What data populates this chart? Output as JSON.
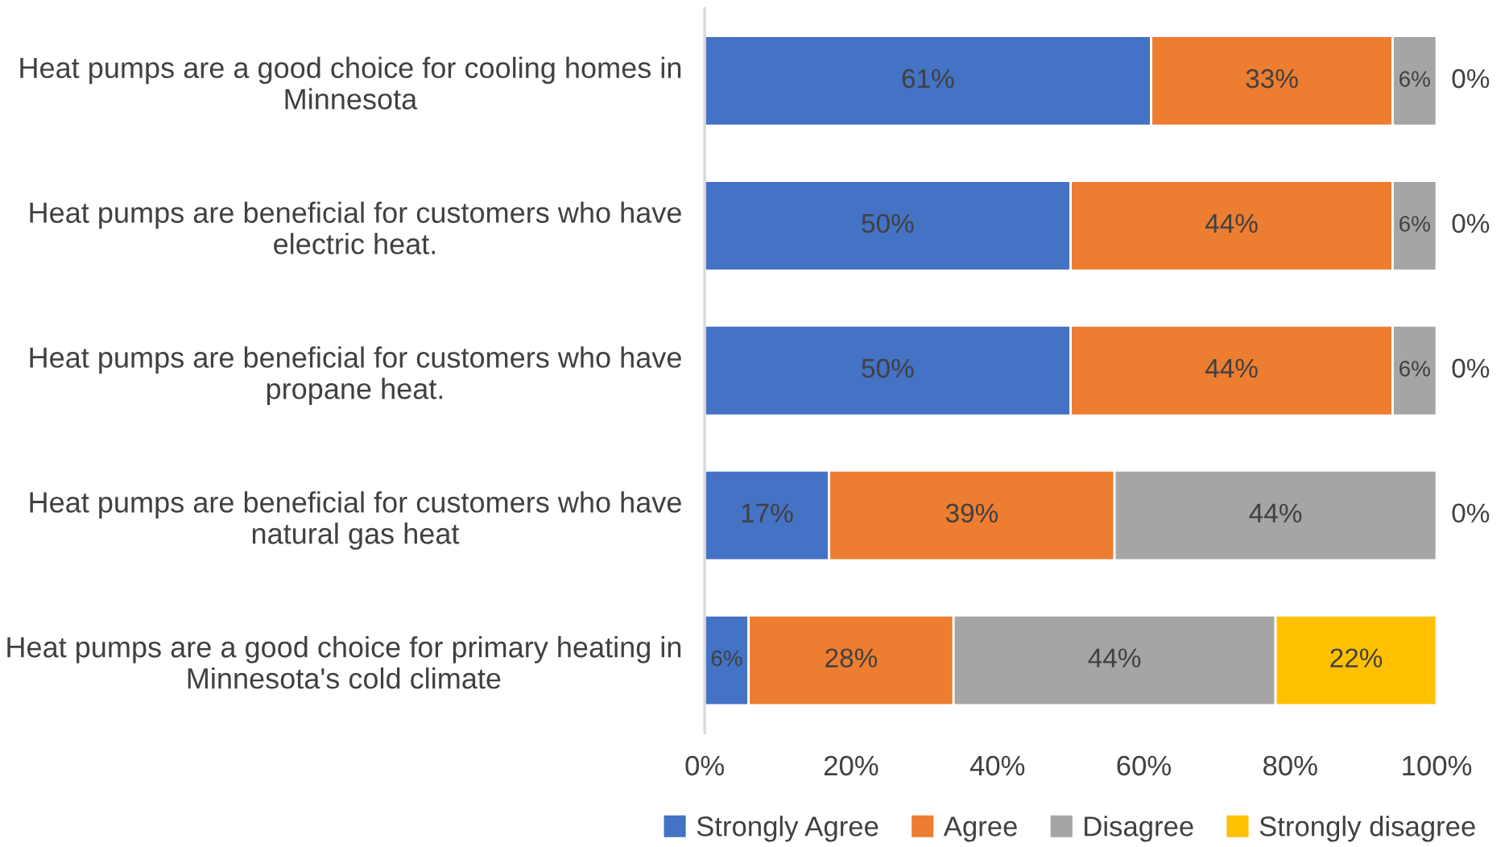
{
  "chart_data": {
    "type": "bar",
    "orientation": "horizontal",
    "stacked": true,
    "categories": [
      "Heat pumps are a good choice for cooling homes in Minnesota",
      "Heat pumps are beneficial for customers who have electric heat.",
      "Heat pumps are beneficial for customers who have propane heat.",
      "Heat pumps are beneficial for customers who have natural gas heat",
      "Heat pumps are a good choice for primary heating in Minnesota's cold climate"
    ],
    "series": [
      {
        "name": "Strongly Agree",
        "color": "#4472c4",
        "values": [
          61,
          50,
          50,
          17,
          6
        ],
        "value_labels": [
          "61%",
          "50%",
          "50%",
          "17%",
          "6%"
        ]
      },
      {
        "name": "Agree",
        "color": "#ed7d31",
        "values": [
          33,
          44,
          44,
          39,
          28
        ],
        "value_labels": [
          "33%",
          "44%",
          "44%",
          "39%",
          "28%"
        ]
      },
      {
        "name": "Disagree",
        "color": "#a5a5a5",
        "values": [
          6,
          6,
          6,
          44,
          44
        ],
        "value_labels": [
          "6%",
          "6%",
          "6%",
          "44%",
          "44%"
        ]
      },
      {
        "name": "Strongly disagree",
        "color": "#ffc000",
        "values": [
          0,
          0,
          0,
          0,
          22
        ],
        "value_labels": [
          "0%",
          "0%",
          "0%",
          "0%",
          "22%"
        ]
      }
    ],
    "xlim": [
      0,
      100
    ],
    "xticks": [
      {
        "value": 0,
        "label": "0%"
      },
      {
        "value": 20,
        "label": "20%"
      },
      {
        "value": 40,
        "label": "40%"
      },
      {
        "value": 60,
        "label": "60%"
      },
      {
        "value": 80,
        "label": "80%"
      },
      {
        "value": 100,
        "label": "100%"
      }
    ],
    "grid": false,
    "legend": "bottom"
  }
}
